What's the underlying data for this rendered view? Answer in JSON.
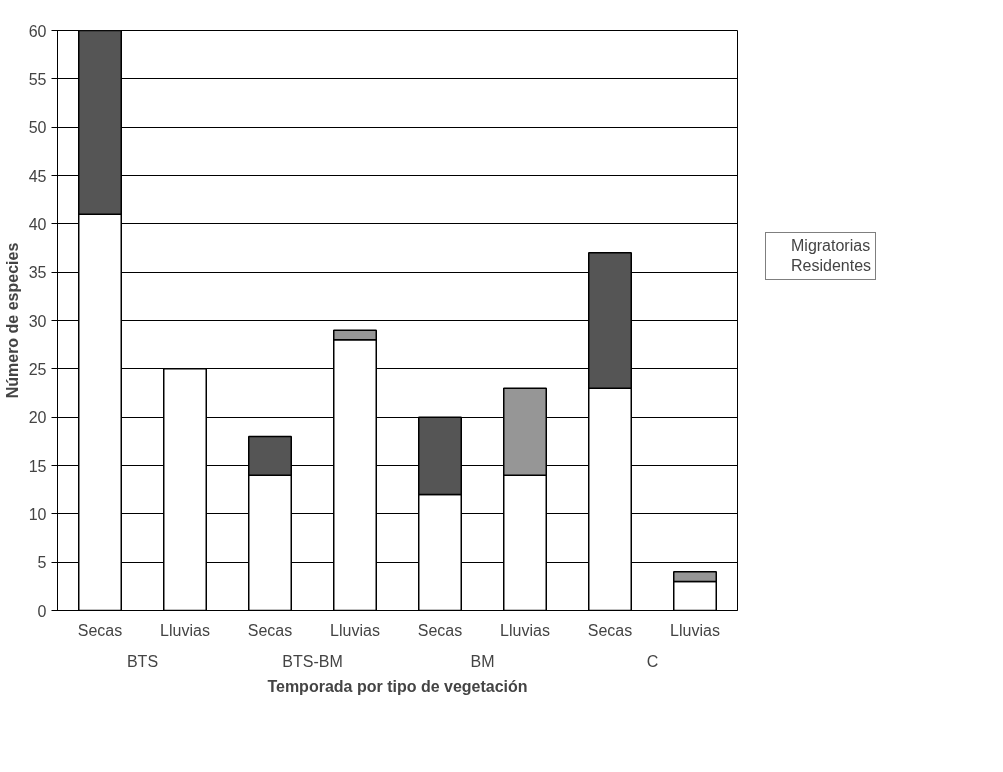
{
  "chart_data": {
    "type": "bar",
    "stacked": true,
    "xlabel": "Temporada por tipo de vegetación",
    "ylabel": "Número de especies",
    "categories": [
      "Secas",
      "Lluvias",
      "Secas",
      "Lluvias",
      "Secas",
      "Lluvias",
      "Secas",
      "Lluvias"
    ],
    "annotations": [
      "BTS",
      "BTS-BM",
      "BM",
      "C"
    ],
    "series": [
      {
        "name": "Residentes",
        "color": "#ffffff",
        "values": [
          41,
          25,
          14,
          28,
          12,
          14,
          23,
          3
        ]
      },
      {
        "name": "Migratorias",
        "color": "#969696",
        "colors": [
          "#555555",
          "#969696",
          "#555555",
          "#969696",
          "#555555",
          "#969696",
          "#555555",
          "#969696"
        ],
        "values": [
          19,
          0,
          4,
          1,
          8,
          9,
          14,
          1
        ]
      }
    ],
    "ylim": [
      0,
      60
    ],
    "yticks": [
      0,
      5,
      10,
      15,
      20,
      25,
      30,
      35,
      40,
      45,
      50,
      55,
      60
    ],
    "grid": "y",
    "legend": "right"
  }
}
